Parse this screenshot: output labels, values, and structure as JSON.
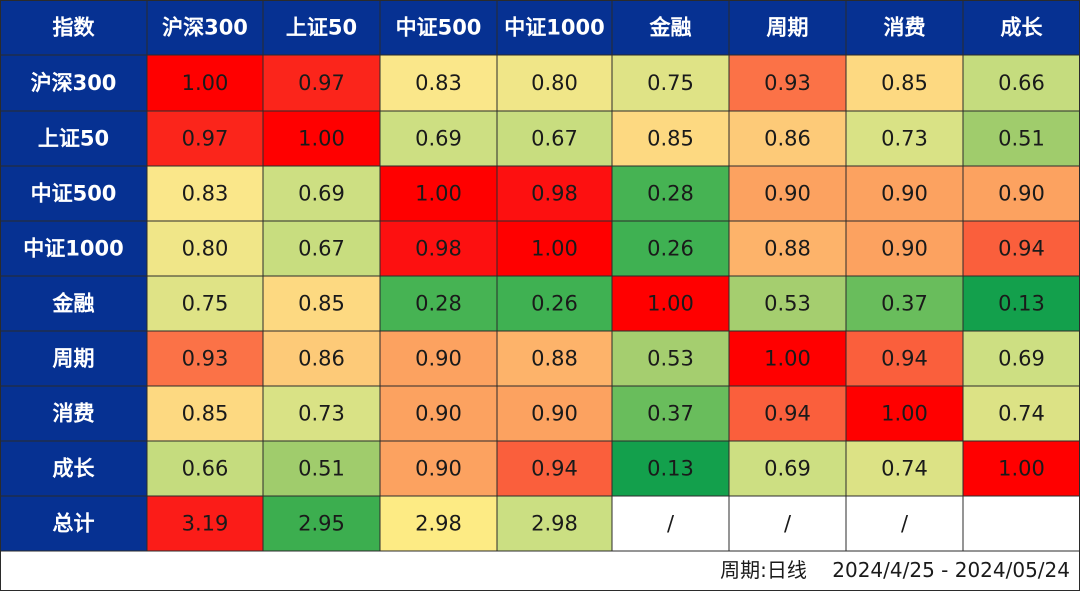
{
  "chart_data": {
    "type": "heatmap",
    "corner_label": "指数",
    "columns": [
      "沪深300",
      "上证50",
      "中证500",
      "中证1000",
      "金融",
      "周期",
      "消费",
      "成长"
    ],
    "rows": [
      "沪深300",
      "上证50",
      "中证500",
      "中证1000",
      "金融",
      "周期",
      "消费",
      "成长"
    ],
    "values": [
      [
        "1.00",
        "0.97",
        "0.83",
        "0.80",
        "0.75",
        "0.93",
        "0.85",
        "0.66"
      ],
      [
        "0.97",
        "1.00",
        "0.69",
        "0.67",
        "0.85",
        "0.86",
        "0.73",
        "0.51"
      ],
      [
        "0.83",
        "0.69",
        "1.00",
        "0.98",
        "0.28",
        "0.90",
        "0.90",
        "0.90"
      ],
      [
        "0.80",
        "0.67",
        "0.98",
        "1.00",
        "0.26",
        "0.88",
        "0.90",
        "0.94"
      ],
      [
        "0.75",
        "0.85",
        "0.28",
        "0.26",
        "1.00",
        "0.53",
        "0.37",
        "0.13"
      ],
      [
        "0.93",
        "0.86",
        "0.90",
        "0.88",
        "0.53",
        "1.00",
        "0.94",
        "0.69"
      ],
      [
        "0.85",
        "0.73",
        "0.90",
        "0.90",
        "0.37",
        "0.94",
        "1.00",
        "0.74"
      ],
      [
        "0.66",
        "0.51",
        "0.90",
        "0.94",
        "0.13",
        "0.69",
        "0.74",
        "1.00"
      ]
    ],
    "total_row": {
      "label": "总计",
      "values": [
        "3.19",
        "2.95",
        "2.98",
        "2.98",
        "/",
        "/",
        "/",
        ""
      ],
      "colors": [
        "#fb1c18",
        "#3cae4f",
        "#fdeb84",
        "#cbdf82",
        "#ffffff",
        "#ffffff",
        "#ffffff",
        "#ffffff"
      ]
    },
    "color_scale": {
      "low": "#13a04c",
      "mid": "#fde88a",
      "high": "#fe0e0e"
    },
    "footnote": "周期:日线    2024/4/25 - 2024/05/24"
  },
  "colors": {
    "header_bg": "#063192",
    "header_text": "#ffffff",
    "grid_line": "#2b2b2b",
    "background": "#ffffff"
  }
}
